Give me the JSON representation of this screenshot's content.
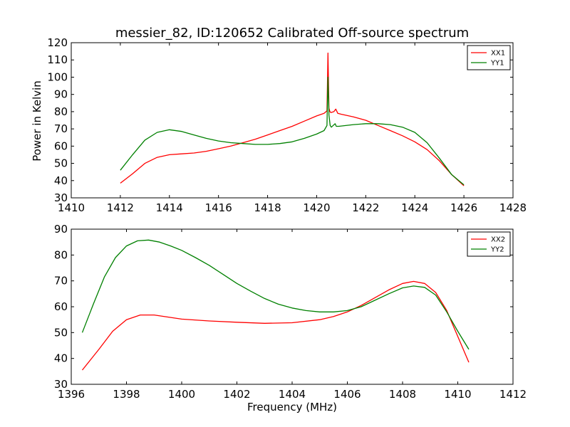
{
  "figure": {
    "title": "messier_82, ID:120652 Calibrated Off-source spectrum",
    "xlabel": "Frequency (MHz)",
    "ylabel_top": "Power in Kelvin"
  },
  "colors": {
    "red": "#ff0000",
    "green": "#008000"
  },
  "chart_data": [
    {
      "type": "line",
      "title": "messier_82, ID:120652 Calibrated Off-source spectrum",
      "xlabel": "",
      "ylabel": "Power in Kelvin",
      "xlim": [
        1410,
        1428
      ],
      "ylim": [
        30,
        120
      ],
      "xticks": [
        1410,
        1412,
        1414,
        1416,
        1418,
        1420,
        1422,
        1424,
        1426,
        1428
      ],
      "yticks": [
        30,
        40,
        50,
        60,
        70,
        80,
        90,
        100,
        110,
        120
      ],
      "legend": "top-right",
      "grid": false,
      "series": [
        {
          "name": "XX1",
          "color": "#ff0000",
          "x": [
            1412.0,
            1412.5,
            1413.0,
            1413.5,
            1414.0,
            1414.5,
            1415.0,
            1415.5,
            1416.0,
            1416.5,
            1417.0,
            1417.5,
            1418.0,
            1418.5,
            1419.0,
            1419.5,
            1420.0,
            1420.3,
            1420.42,
            1420.46,
            1420.5,
            1420.54,
            1420.58,
            1420.7,
            1420.78,
            1420.86,
            1421.0,
            1421.5,
            1422.0,
            1422.5,
            1423.0,
            1423.5,
            1424.0,
            1424.5,
            1425.0,
            1425.5,
            1426.0
          ],
          "y": [
            38.5,
            44,
            50,
            53.5,
            55,
            55.5,
            56,
            57,
            58.5,
            60,
            62,
            64,
            66.5,
            69,
            71.5,
            74.5,
            77.5,
            79,
            80.5,
            114,
            82,
            80,
            79.5,
            80,
            81.5,
            79,
            78.5,
            77,
            75,
            72,
            69,
            66,
            62.5,
            58,
            51.5,
            43.5,
            37
          ]
        },
        {
          "name": "YY1",
          "color": "#008000",
          "x": [
            1412.0,
            1412.5,
            1413.0,
            1413.5,
            1414.0,
            1414.5,
            1415.0,
            1415.5,
            1416.0,
            1416.5,
            1417.0,
            1417.5,
            1418.0,
            1418.5,
            1419.0,
            1419.5,
            1420.0,
            1420.3,
            1420.42,
            1420.46,
            1420.5,
            1420.55,
            1420.6,
            1420.75,
            1420.8,
            1420.9,
            1421.5,
            1422.0,
            1422.5,
            1423.0,
            1423.5,
            1424.0,
            1424.5,
            1425.0,
            1425.5,
            1426.0
          ],
          "y": [
            46,
            55,
            63.5,
            68,
            69.5,
            68.5,
            66.5,
            64.5,
            63,
            62,
            61.5,
            61,
            61,
            61.5,
            62.5,
            64.5,
            67,
            69,
            72,
            100,
            78,
            72,
            71,
            73,
            71.5,
            71.5,
            72.5,
            73,
            73,
            72.5,
            71,
            68,
            62,
            53,
            43.5,
            37.5
          ]
        }
      ]
    },
    {
      "type": "line",
      "title": "",
      "xlabel": "Frequency (MHz)",
      "ylabel": "",
      "xlim": [
        1396,
        1412
      ],
      "ylim": [
        30,
        90
      ],
      "xticks": [
        1396,
        1398,
        1400,
        1402,
        1404,
        1406,
        1408,
        1410,
        1412
      ],
      "yticks": [
        30,
        40,
        50,
        60,
        70,
        80,
        90
      ],
      "legend": "top-right",
      "grid": false,
      "series": [
        {
          "name": "XX2",
          "color": "#ff0000",
          "x": [
            1396.4,
            1397.0,
            1397.5,
            1398.0,
            1398.5,
            1399.0,
            1399.5,
            1400.0,
            1401.0,
            1402.0,
            1403.0,
            1404.0,
            1405.0,
            1405.5,
            1406.0,
            1406.5,
            1407.0,
            1407.5,
            1408.0,
            1408.4,
            1408.8,
            1409.2,
            1409.6,
            1410.0,
            1410.4
          ],
          "y": [
            35.5,
            43.5,
            50.5,
            55,
            56.8,
            56.8,
            56,
            55.2,
            54.5,
            54,
            53.6,
            53.8,
            55,
            56.2,
            58,
            60.5,
            63.5,
            66.5,
            69,
            69.8,
            69,
            65.5,
            58.5,
            48.5,
            38.5
          ]
        },
        {
          "name": "YY2",
          "color": "#008000",
          "x": [
            1396.4,
            1396.8,
            1397.2,
            1397.6,
            1398.0,
            1398.4,
            1398.8,
            1399.2,
            1399.6,
            1400.0,
            1400.5,
            1401.0,
            1401.5,
            1402.0,
            1402.5,
            1403.0,
            1403.5,
            1404.0,
            1404.5,
            1405.0,
            1405.5,
            1406.0,
            1406.5,
            1407.0,
            1407.5,
            1408.0,
            1408.4,
            1408.8,
            1409.2,
            1409.6,
            1410.0,
            1410.4
          ],
          "y": [
            50,
            61,
            71.5,
            79,
            83.5,
            85.5,
            85.8,
            85,
            83.5,
            81.8,
            79,
            76,
            72.5,
            69,
            66,
            63.2,
            61,
            59.5,
            58.5,
            58,
            58,
            58.5,
            60,
            62.5,
            65,
            67.3,
            68,
            67.5,
            64.5,
            58,
            50.5,
            43.5
          ]
        }
      ]
    }
  ]
}
